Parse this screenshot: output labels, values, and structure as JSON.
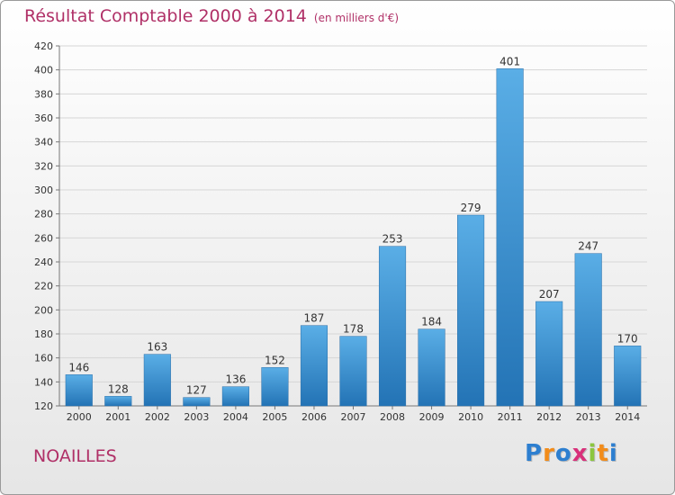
{
  "chart_data": {
    "type": "bar",
    "title": "Résultat Comptable 2000 à 2014",
    "subtitle": "(en milliers d'€)",
    "categories": [
      "2000",
      "2001",
      "2002",
      "2003",
      "2004",
      "2005",
      "2006",
      "2007",
      "2008",
      "2009",
      "2010",
      "2011",
      "2012",
      "2013",
      "2014"
    ],
    "values": [
      146,
      128,
      163,
      127,
      136,
      152,
      187,
      178,
      253,
      184,
      279,
      401,
      207,
      247,
      170
    ],
    "ylim": [
      120,
      420
    ],
    "yticks": [
      120,
      140,
      160,
      180,
      200,
      220,
      240,
      260,
      280,
      300,
      320,
      340,
      360,
      380,
      400,
      420
    ],
    "grid": true,
    "bar_color": "#3a8fd4"
  },
  "location": "NOAILLES",
  "brand": {
    "letters": [
      "P",
      "r",
      "o",
      "x",
      "i",
      "t",
      "i"
    ],
    "colors": [
      "#2d7fd0",
      "#f28c1a",
      "#2d7fd0",
      "#d8307a",
      "#8cc63f",
      "#f28c1a",
      "#2d7fd0"
    ]
  }
}
